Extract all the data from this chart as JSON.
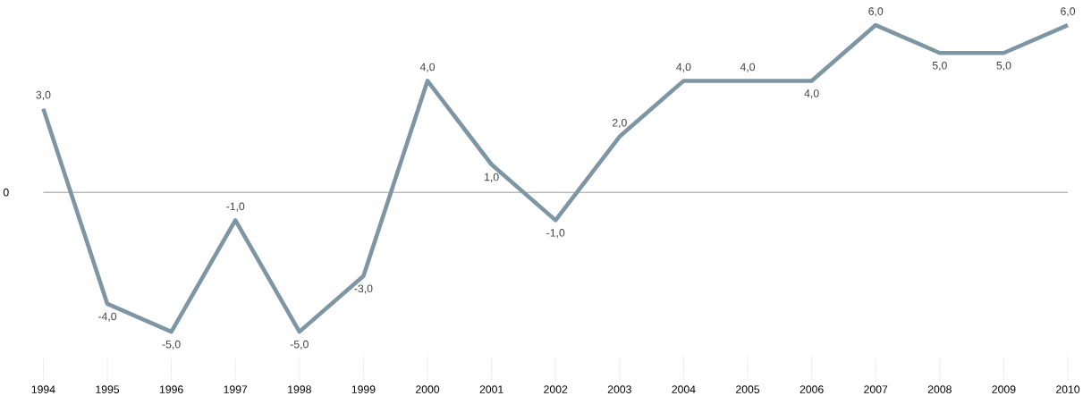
{
  "chart_data": {
    "type": "line",
    "categories": [
      "1994",
      "1995",
      "1996",
      "1997",
      "1998",
      "1999",
      "2000",
      "2001",
      "2002",
      "2003",
      "2004",
      "2005",
      "2006",
      "2007",
      "2008",
      "2009",
      "2010"
    ],
    "values": [
      3,
      -4,
      -5,
      -1,
      -5,
      -3,
      4,
      1,
      -1,
      2,
      4,
      4,
      4,
      6,
      5,
      5,
      6
    ],
    "value_labels": [
      "3,0",
      "-4,0",
      "-5,0",
      "-1,0",
      "-5,0",
      "-3,0",
      "4,0",
      "1,0",
      "-1,0",
      "2,0",
      "4,0",
      "4,0",
      "4,0",
      "6,0",
      "5,0",
      "5,0",
      "6,0"
    ],
    "color": "#7e96a4",
    "ref_lines": [
      {
        "axis": "y",
        "value": 0,
        "label": "0"
      }
    ],
    "grid": false,
    "legend": false,
    "marker": "none",
    "line_style": "solid"
  }
}
